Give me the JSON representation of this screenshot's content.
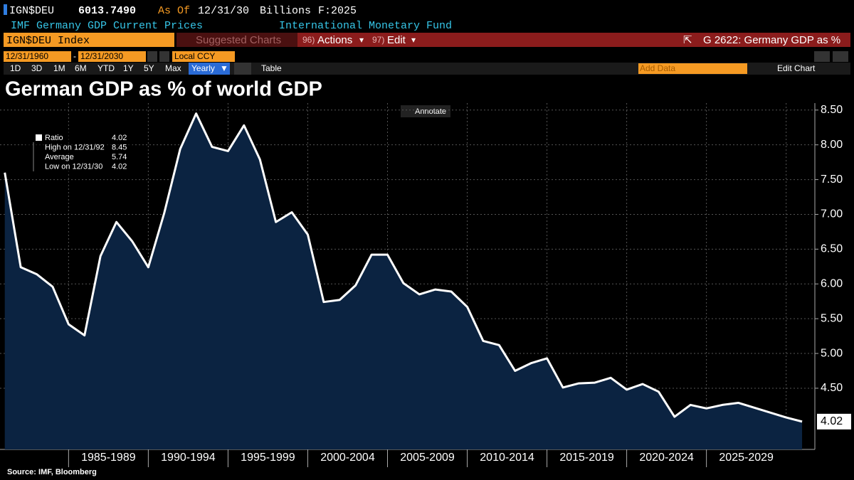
{
  "header": {
    "ticker": "IGN$DEU",
    "price": "6013.7490",
    "as_of_label": "As Of",
    "as_of": "12/31/30",
    "units": "Billions",
    "forecast": "F:2025",
    "description": "IMF Germany GDP Current Prices",
    "source_org": "International Monetary Fund"
  },
  "toolbar": {
    "index": "IGN$DEU Index",
    "suggested": "Suggested Charts",
    "actions_num": "96)",
    "actions": "Actions",
    "edit_num": "97)",
    "edit": "Edit",
    "chart_id": "G 2622: Germany GDP as %"
  },
  "controls": {
    "start": "12/31/1960",
    "end": "12/31/2030",
    "currency": "Local CCY",
    "periods": [
      "1D",
      "3D",
      "1M",
      "6M",
      "YTD",
      "1Y",
      "5Y",
      "Max"
    ],
    "frequency": "Yearly",
    "table": "Table",
    "add_data": "Add Data",
    "edit_chart": "Edit Chart"
  },
  "chart_data": {
    "type": "area",
    "title": "German GDP as % of world GDP",
    "annotate": "Annotate",
    "source": "Source: IMF, Bloomberg",
    "x": [
      1980,
      1981,
      1982,
      1983,
      1984,
      1985,
      1986,
      1987,
      1988,
      1989,
      1990,
      1991,
      1992,
      1993,
      1994,
      1995,
      1996,
      1997,
      1998,
      1999,
      2000,
      2001,
      2002,
      2003,
      2004,
      2005,
      2006,
      2007,
      2008,
      2009,
      2010,
      2011,
      2012,
      2013,
      2014,
      2015,
      2016,
      2017,
      2018,
      2019,
      2020,
      2021,
      2022,
      2023,
      2024,
      2025,
      2026,
      2027,
      2028,
      2029,
      2030
    ],
    "series": [
      {
        "name": "Ratio",
        "color": "#ffffff",
        "area_color": "#0b2341",
        "values": [
          7.6,
          6.24,
          6.14,
          5.96,
          5.42,
          5.26,
          6.4,
          6.89,
          6.61,
          6.24,
          7.02,
          7.94,
          8.45,
          7.97,
          7.91,
          8.28,
          7.79,
          6.89,
          7.03,
          6.71,
          5.74,
          5.77,
          5.98,
          6.42,
          6.42,
          6.01,
          5.85,
          5.92,
          5.89,
          5.67,
          5.18,
          5.12,
          4.75,
          4.86,
          4.93,
          4.51,
          4.57,
          4.58,
          4.65,
          4.48,
          4.56,
          4.45,
          4.09,
          4.26,
          4.21,
          4.26,
          4.29,
          4.22,
          4.15,
          4.08,
          4.02
        ]
      }
    ],
    "stats": {
      "last": 4.02,
      "high_label": "High on 12/31/92",
      "high": 8.45,
      "average_label": "Average",
      "average": 5.74,
      "low_label": "Low on 12/31/30",
      "low": 4.02
    },
    "xlim": [
      1979.7,
      2030.8
    ],
    "xticks": [
      {
        "value": 1986.5,
        "label": "1985-1989"
      },
      {
        "value": 1991.5,
        "label": "1990-1994"
      },
      {
        "value": 1996.5,
        "label": "1995-1999"
      },
      {
        "value": 2001.5,
        "label": "2000-2004"
      },
      {
        "value": 2006.5,
        "label": "2005-2009"
      },
      {
        "value": 2011.5,
        "label": "2010-2014"
      },
      {
        "value": 2016.5,
        "label": "2015-2019"
      },
      {
        "value": 2021.5,
        "label": "2020-2024"
      },
      {
        "value": 2026.5,
        "label": "2025-2029"
      }
    ],
    "ylim": [
      3.62,
      8.6
    ],
    "yticks": [
      {
        "value": 4.5,
        "label": "4.50"
      },
      {
        "value": 5,
        "label": "5.00"
      },
      {
        "value": 5.5,
        "label": "5.50"
      },
      {
        "value": 6,
        "label": "6.00"
      },
      {
        "value": 6.5,
        "label": "6.50"
      },
      {
        "value": 7,
        "label": "7.00"
      },
      {
        "value": 7.5,
        "label": "7.50"
      },
      {
        "value": 8,
        "label": "8.00"
      },
      {
        "value": 8.5,
        "label": "8.50"
      }
    ],
    "grid": true
  }
}
